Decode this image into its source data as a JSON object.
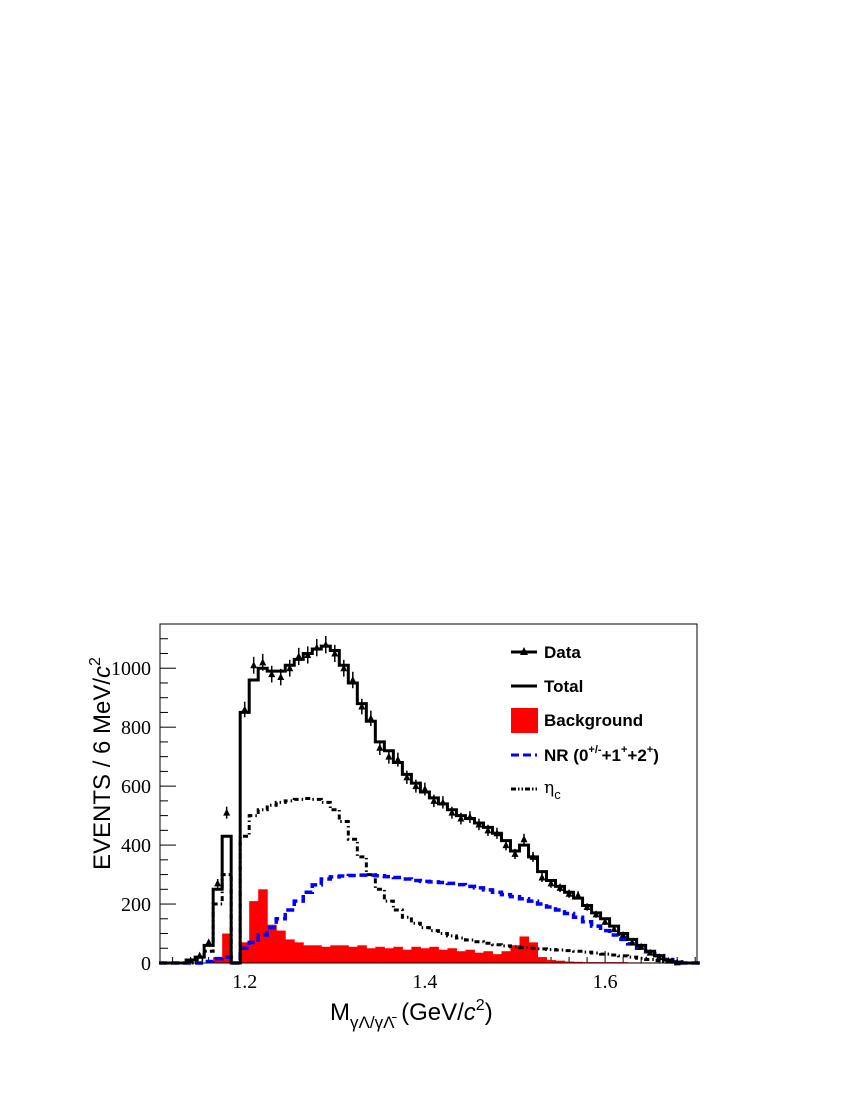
{
  "chart_data": {
    "type": "line",
    "title": "",
    "xlabel": {
      "main": "M",
      "sub": "γΛ/γΛ̄",
      "unit_pre": " (GeV/",
      "unit_c": "c",
      "unit_sup": "2",
      "unit_post": ")"
    },
    "ylabel": {
      "pre": "EVENTS / 6 MeV/",
      "c": "c",
      "sup": "2"
    },
    "xlim": [
      1.106,
      1.702
    ],
    "ylim": [
      0,
      1150
    ],
    "xticks": [
      "1.2",
      "1.4",
      "1.6"
    ],
    "xtick_values": [
      1.2,
      1.4,
      1.6
    ],
    "yticks": [
      "0",
      "200",
      "400",
      "600",
      "800",
      "1000"
    ],
    "ytick_values": [
      0,
      200,
      400,
      600,
      800,
      1000
    ],
    "grid": false,
    "legend_placement": "top-right",
    "x": [
      1.11,
      1.12,
      1.13,
      1.14,
      1.15,
      1.16,
      1.17,
      1.18,
      1.19,
      1.2,
      1.21,
      1.22,
      1.23,
      1.24,
      1.25,
      1.26,
      1.27,
      1.28,
      1.29,
      1.3,
      1.31,
      1.32,
      1.33,
      1.34,
      1.35,
      1.36,
      1.37,
      1.38,
      1.39,
      1.4,
      1.41,
      1.42,
      1.43,
      1.44,
      1.45,
      1.46,
      1.47,
      1.48,
      1.49,
      1.5,
      1.51,
      1.52,
      1.53,
      1.54,
      1.55,
      1.56,
      1.57,
      1.58,
      1.59,
      1.6,
      1.61,
      1.62,
      1.63,
      1.64,
      1.65,
      1.66,
      1.67,
      1.68,
      1.69,
      1.7
    ],
    "series": [
      {
        "name": "Data",
        "kind": "points",
        "color": "#000000",
        "values": [
          0,
          0,
          0,
          8,
          25,
          70,
          270,
          510,
          0,
          860,
          1010,
          1020,
          980,
          970,
          1000,
          1040,
          1045,
          1070,
          1080,
          1050,
          1000,
          960,
          870,
          830,
          730,
          700,
          690,
          630,
          600,
          590,
          550,
          545,
          510,
          490,
          495,
          470,
          450,
          440,
          400,
          370,
          420,
          360,
          290,
          270,
          255,
          235,
          230,
          190,
          165,
          140,
          115,
          95,
          70,
          55,
          35,
          20,
          8,
          2,
          0,
          0
        ]
      },
      {
        "name": "Total",
        "kind": "step",
        "color": "#000000",
        "values": [
          0,
          0,
          0,
          10,
          20,
          60,
          250,
          430,
          0,
          850,
          960,
          1000,
          990,
          990,
          1010,
          1030,
          1050,
          1065,
          1075,
          1060,
          1010,
          950,
          880,
          820,
          750,
          720,
          680,
          640,
          610,
          580,
          560,
          540,
          520,
          500,
          490,
          475,
          460,
          440,
          415,
          380,
          400,
          360,
          310,
          280,
          260,
          240,
          220,
          195,
          170,
          150,
          125,
          100,
          80,
          60,
          40,
          25,
          10,
          3,
          0,
          0
        ]
      },
      {
        "name": "Background",
        "kind": "fill",
        "color": "#ff0000",
        "values": [
          0,
          0,
          0,
          0,
          0,
          0,
          20,
          100,
          0,
          70,
          210,
          250,
          130,
          110,
          80,
          70,
          60,
          60,
          55,
          60,
          60,
          55,
          60,
          50,
          55,
          50,
          55,
          45,
          55,
          50,
          55,
          45,
          50,
          40,
          45,
          35,
          40,
          30,
          40,
          60,
          90,
          70,
          20,
          10,
          8,
          5,
          4,
          3,
          3,
          3,
          3,
          3,
          2,
          2,
          2,
          2,
          1,
          1,
          0,
          0
        ]
      },
      {
        "name": "NR (0+/-+1++2+)",
        "kind": "dashed",
        "color": "#0000ff",
        "values": [
          0,
          0,
          0,
          0,
          0,
          5,
          15,
          20,
          0,
          50,
          70,
          95,
          120,
          150,
          180,
          210,
          240,
          265,
          285,
          292,
          295,
          297,
          298,
          298,
          296,
          293,
          290,
          285,
          280,
          277,
          275,
          273,
          270,
          266,
          260,
          255,
          248,
          240,
          232,
          225,
          218,
          210,
          200,
          190,
          180,
          168,
          155,
          140,
          125,
          110,
          95,
          80,
          65,
          50,
          38,
          25,
          12,
          4,
          0,
          0
        ]
      },
      {
        "name": "ηc",
        "kind": "dashdot",
        "color": "#000000",
        "values": [
          0,
          0,
          0,
          0,
          10,
          40,
          200,
          300,
          0,
          430,
          500,
          520,
          535,
          545,
          550,
          555,
          558,
          555,
          545,
          520,
          480,
          420,
          360,
          300,
          250,
          210,
          180,
          155,
          135,
          120,
          110,
          100,
          92,
          85,
          78,
          72,
          67,
          62,
          58,
          55,
          52,
          50,
          48,
          46,
          44,
          42,
          40,
          37,
          34,
          30,
          27,
          24,
          20,
          16,
          12,
          8,
          5,
          2,
          0,
          0
        ]
      }
    ],
    "legend": [
      {
        "label": "Data",
        "symbol": "line-triangle"
      },
      {
        "label": "Total",
        "symbol": "line"
      },
      {
        "label": "Background",
        "symbol": "box"
      },
      {
        "label_pre": "NR (0",
        "sup1": "+/-",
        "mid1": "+1",
        "sup2": "+",
        "mid2": "+2",
        "sup3": "+",
        "post": ")",
        "symbol": "dashed"
      },
      {
        "label": "η",
        "sub": "c",
        "symbol": "dashdot"
      }
    ]
  }
}
